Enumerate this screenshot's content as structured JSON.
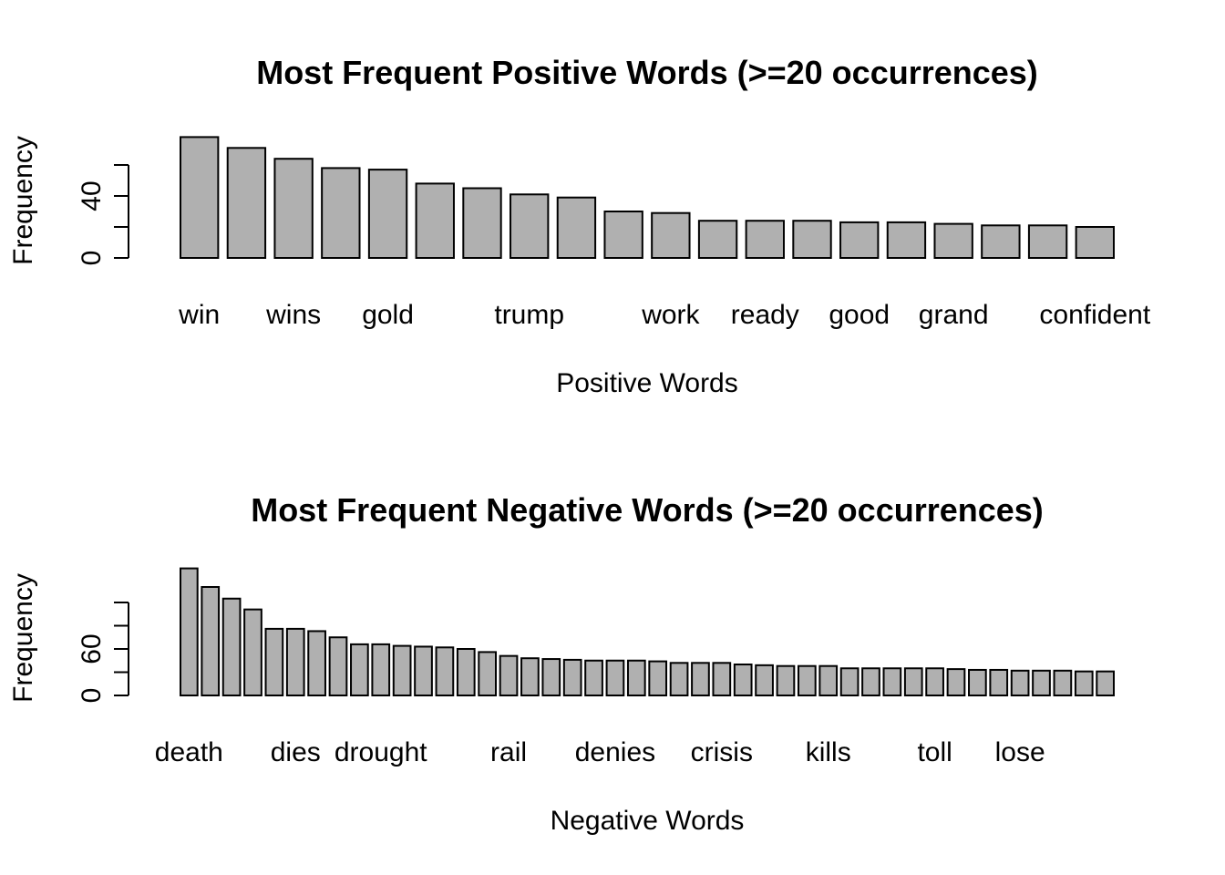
{
  "chart_data": [
    {
      "type": "bar",
      "title": "Most Frequent Positive Words (>=20 occurrences)",
      "xlabel": "Positive Words",
      "ylabel": "Frequency",
      "ylim": [
        0,
        80
      ],
      "y_ticks": [
        0,
        20,
        40,
        60
      ],
      "y_tick_labels": [
        "0",
        "",
        "40",
        ""
      ],
      "grid": false,
      "legend": "none",
      "bar_color": "#b0b0b0",
      "categories": [
        "win",
        "",
        "wins",
        "",
        "gold",
        "",
        "",
        "trump",
        "",
        "",
        "work",
        "",
        "ready",
        "",
        "good",
        "",
        "grand",
        "",
        "",
        "confident"
      ],
      "visible_category_labels": [
        "win",
        "wins",
        "gold",
        "trump",
        "work",
        "ready",
        "good",
        "grand",
        "confident"
      ],
      "values": [
        78,
        71,
        64,
        58,
        57,
        48,
        45,
        41,
        39,
        30,
        29,
        24,
        24,
        24,
        23,
        23,
        22,
        21,
        21,
        20
      ]
    },
    {
      "type": "bar",
      "title": "Most Frequent Negative Words (>=20 occurrences)",
      "xlabel": "Negative Words",
      "ylabel": "Frequency",
      "ylim": [
        0,
        160
      ],
      "y_ticks": [
        0,
        30,
        60,
        90,
        120
      ],
      "y_tick_labels": [
        "0",
        "",
        "60",
        "",
        ""
      ],
      "grid": false,
      "legend": "none",
      "bar_color": "#b0b0b0",
      "categories": [
        "death",
        "",
        "",
        "",
        "",
        "dies",
        "",
        "",
        "",
        "drought",
        "",
        "",
        "",
        "",
        "",
        "rail",
        "",
        "",
        "",
        "",
        "denies",
        "",
        "",
        "",
        "",
        "crisis",
        "",
        "",
        "",
        "",
        "kills",
        "",
        "",
        "",
        "",
        "toll",
        "",
        "",
        "",
        "lose",
        "",
        "",
        "",
        ""
      ],
      "visible_category_labels": [
        "death",
        "dies",
        "drought",
        "rail",
        "denies",
        "crisis",
        "kills",
        "toll",
        "lose"
      ],
      "values": [
        164,
        140,
        125,
        111,
        86,
        86,
        83,
        75,
        66,
        66,
        64,
        63,
        62,
        60,
        56,
        51,
        48,
        47,
        46,
        45,
        45,
        45,
        44,
        42,
        42,
        42,
        40,
        39,
        38,
        38,
        38,
        35,
        35,
        35,
        35,
        35,
        34,
        33,
        33,
        32,
        32,
        32,
        31,
        31
      ]
    }
  ]
}
